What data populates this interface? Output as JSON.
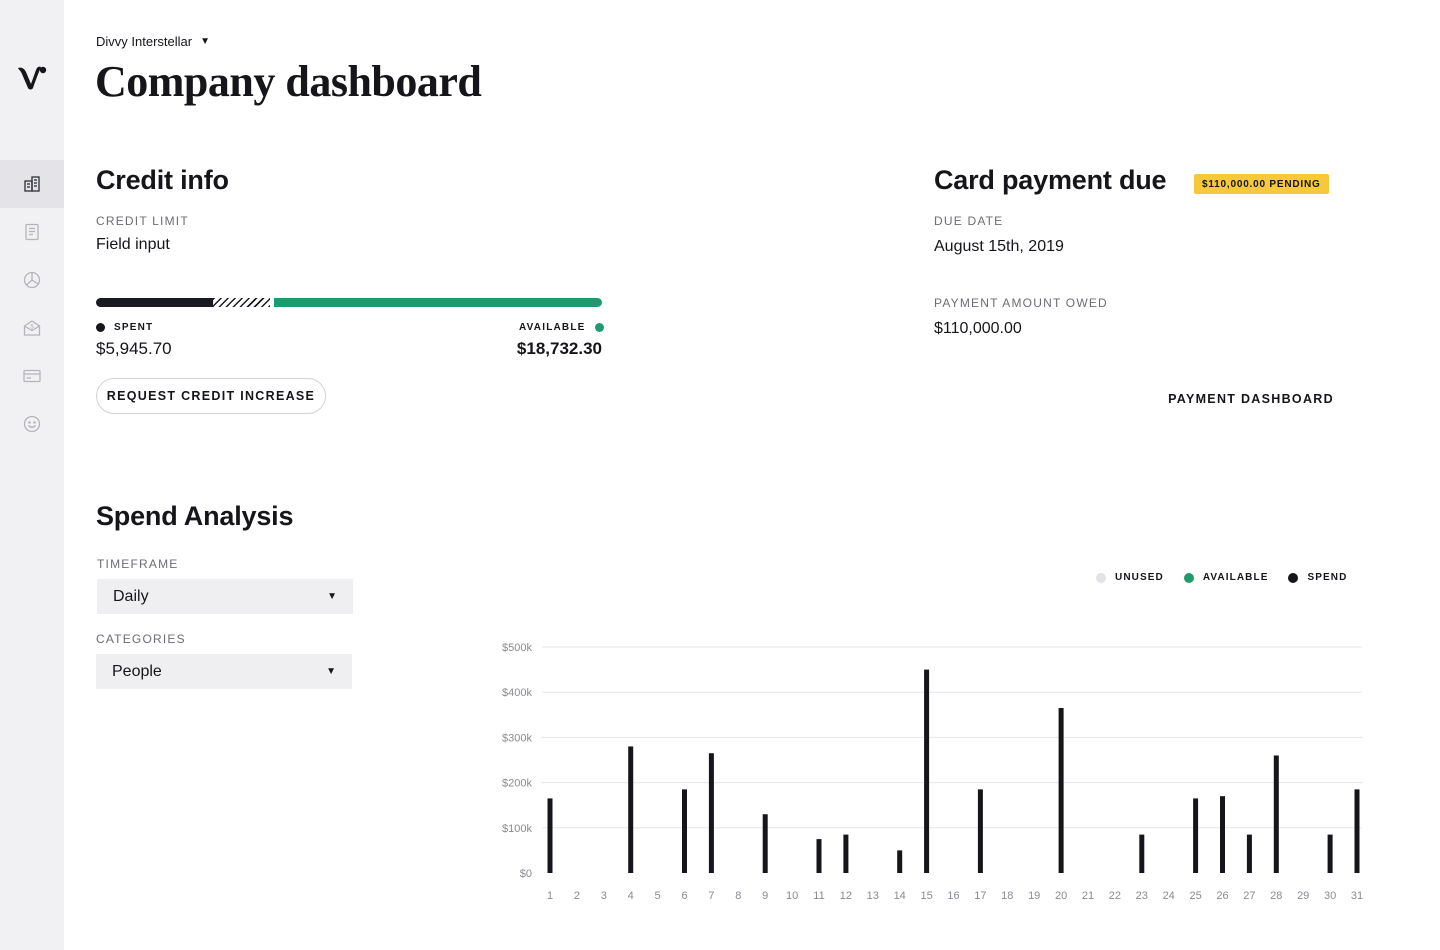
{
  "org": {
    "name": "Divvy Interstellar"
  },
  "page": {
    "title": "Company dashboard"
  },
  "nav": {
    "items": [
      {
        "icon": "dashboard-icon",
        "active": true
      },
      {
        "icon": "receipt-icon",
        "active": false
      },
      {
        "icon": "pie-chart-icon",
        "active": false
      },
      {
        "icon": "budget-icon",
        "active": false
      },
      {
        "icon": "card-icon",
        "active": false
      },
      {
        "icon": "smiley-icon",
        "active": false
      }
    ]
  },
  "credit": {
    "title": "Credit info",
    "limit_label": "CREDIT LIMIT",
    "limit_value": "Field input",
    "spent_label": "SPENT",
    "spent_value": "$5,945.70",
    "available_label": "AVAILABLE",
    "available_value": "$18,732.30",
    "request_button": "REQUEST CREDIT INCREASE"
  },
  "payment": {
    "title": "Card payment due",
    "badge": "$110,000.00 PENDING",
    "due_label": "DUE DATE",
    "due_value": "August 15th, 2019",
    "owed_label": "PAYMENT AMOUNT OWED",
    "owed_value": "$110,000.00",
    "dashboard_button": "PAYMENT DASHBOARD"
  },
  "spend": {
    "title": "Spend Analysis",
    "timeframe_label": "TIMEFRAME",
    "timeframe_value": "Daily",
    "categories_label": "CATEGORIES",
    "categories_value": "People"
  },
  "colors": {
    "spend": "#15151a",
    "available": "#1f9a6e",
    "unused": "#e2e2e6",
    "badge": "#f6c93a",
    "grid": "#e6e6e9",
    "tick": "#8a8a92"
  },
  "chart_data": {
    "type": "bar",
    "legend": [
      "UNUSED",
      "AVAILABLE",
      "SPEND"
    ],
    "categories": [
      "1",
      "2",
      "3",
      "4",
      "5",
      "6",
      "7",
      "8",
      "9",
      "10",
      "11",
      "12",
      "13",
      "14",
      "15",
      "16",
      "17",
      "18",
      "19",
      "20",
      "21",
      "22",
      "23",
      "24",
      "25",
      "26",
      "27",
      "28",
      "29",
      "30",
      "31"
    ],
    "series": [
      {
        "name": "SPEND",
        "values": [
          165000,
          0,
          0,
          280000,
          0,
          185000,
          265000,
          0,
          130000,
          0,
          75000,
          85000,
          0,
          50000,
          450000,
          0,
          185000,
          0,
          0,
          365000,
          0,
          0,
          85000,
          0,
          165000,
          170000,
          85000,
          260000,
          0,
          85000,
          185000
        ]
      }
    ],
    "y_ticks": [
      "$0",
      "$100k",
      "$200k",
      "$300k",
      "$400k",
      "$500k"
    ],
    "ylim": [
      0,
      500000
    ],
    "grid": true,
    "legend_position": "top-right"
  }
}
